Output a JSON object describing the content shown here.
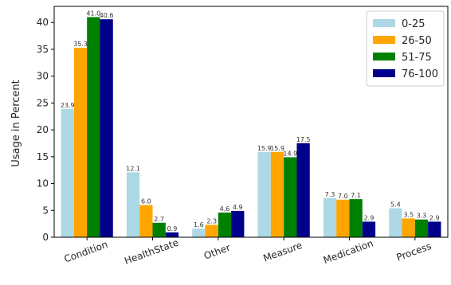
{
  "chart_data": {
    "type": "bar",
    "title": "",
    "xlabel": "",
    "ylabel": "Usage in Percent",
    "ylim": [
      0,
      43
    ],
    "yticks": [
      0,
      5,
      10,
      15,
      20,
      25,
      30,
      35,
      40
    ],
    "categories": [
      "Condition",
      "HealthState",
      "Other",
      "Measure",
      "Medication",
      "Process"
    ],
    "grid": false,
    "legend_position": "top-right",
    "series": [
      {
        "name": "0-25",
        "color": "#add8e6",
        "values": [
          23.9,
          12.1,
          1.6,
          15.9,
          7.3,
          5.4
        ],
        "labels": [
          "23.9",
          "12.1",
          "1.6",
          "15.9",
          "7.3",
          "5.4"
        ]
      },
      {
        "name": "26-50",
        "color": "#ffa500",
        "values": [
          35.3,
          6.0,
          2.3,
          15.9,
          7.0,
          3.5
        ],
        "labels": [
          "35.3",
          "6.0",
          "2.3",
          "15.9",
          "7.0",
          "3.5"
        ]
      },
      {
        "name": "51-75",
        "color": "#008000",
        "values": [
          41.0,
          2.7,
          4.6,
          14.9,
          7.1,
          3.3
        ],
        "labels": [
          "41.0",
          "2.7",
          "4.6",
          "14.9",
          "7.1",
          "3.3"
        ]
      },
      {
        "name": "76-100",
        "color": "#00008b",
        "values": [
          40.6,
          0.9,
          4.9,
          17.5,
          2.9,
          2.9
        ],
        "labels": [
          "40.6",
          "0.9",
          "4.9",
          "17.5",
          "2.9",
          "2.9"
        ]
      }
    ]
  }
}
